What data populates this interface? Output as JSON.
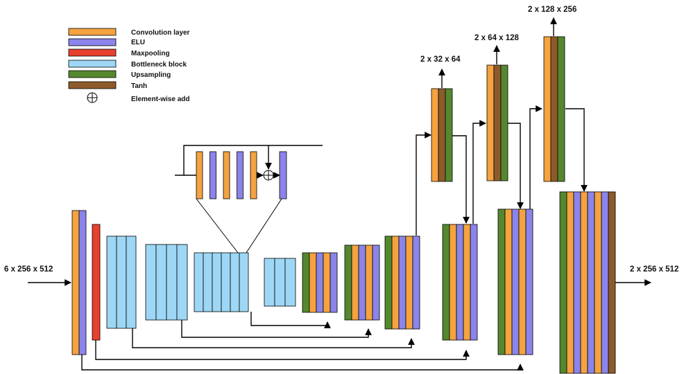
{
  "colors": {
    "conv": "#f4a340",
    "elu": "#8b84ea",
    "maxpool": "#e8402e",
    "bottleneck": "#9dd7f5",
    "upsample": "#55882e",
    "tanh": "#8d5b2b"
  },
  "legend": [
    {
      "kind": "conv",
      "label": "Convolution layer"
    },
    {
      "kind": "elu",
      "label": "ELU"
    },
    {
      "kind": "maxpool",
      "label": "Maxpooling"
    },
    {
      "kind": "bottleneck",
      "label": "Bottleneck block"
    },
    {
      "kind": "upsample",
      "label": "Upsampling"
    },
    {
      "kind": "tanh",
      "label": "Tanh"
    }
  ],
  "legend_add": {
    "symbol": "⊕",
    "label": "Element-wise add"
  },
  "labels": {
    "input": "6 x 256 x 512",
    "output": "2 x 256 x 512",
    "out1": "2 x 32 x 64",
    "out2": "2 x 64 x 128",
    "out3": "2 x 128 x 256"
  }
}
